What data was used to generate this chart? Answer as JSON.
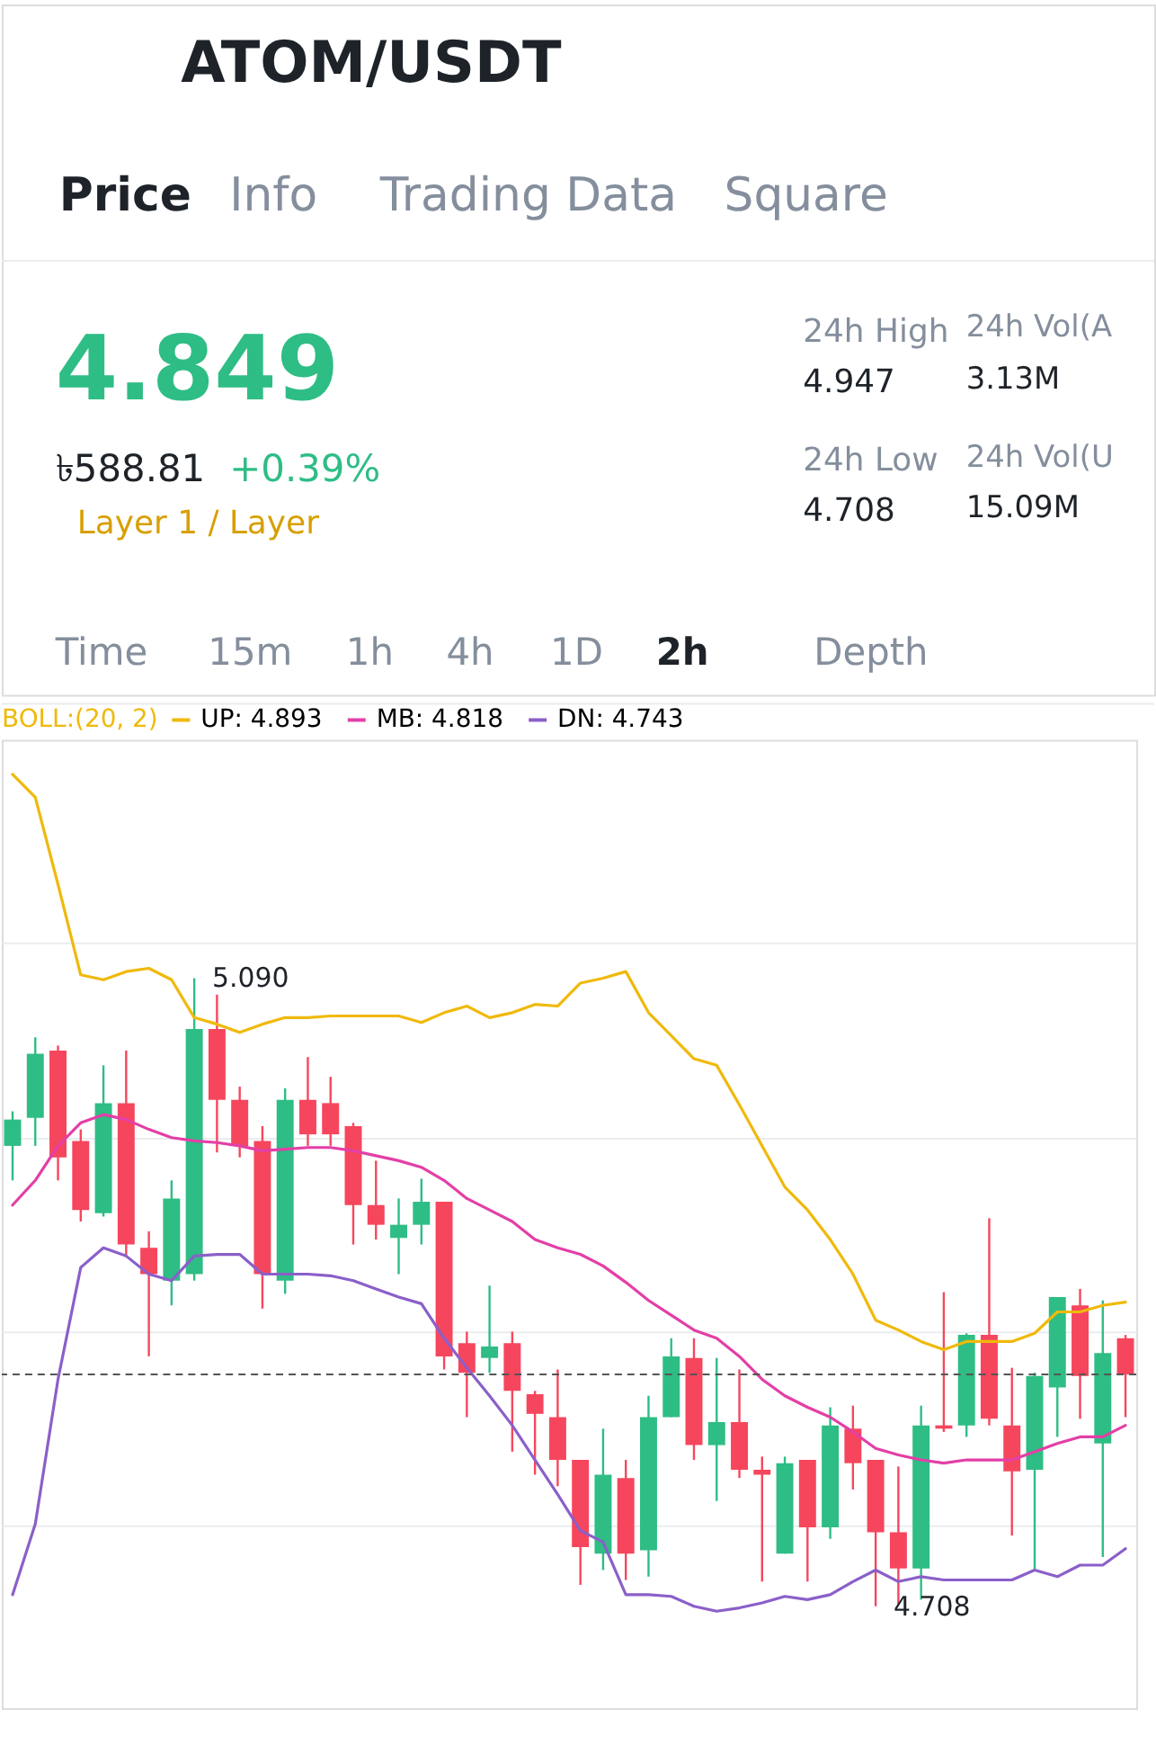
{
  "chart_data": [
    {
      "type": "other",
      "title": "ATOM/USDT",
      "annotations": [
        "Price",
        "Info",
        "Trading Data",
        "Square",
        "4.849",
        "৳588.81",
        "+0.39%",
        "Layer 1 / Layer",
        "24h High",
        "4.947",
        "24h Low",
        "4.708",
        "24h Vol(A",
        "3.13M",
        "24h Vol(U",
        "15.09M",
        "Time",
        "15m",
        "1h",
        "4h",
        "1D",
        "2h",
        "Depth"
      ]
    },
    {
      "type": "candlestick",
      "categories": [
        null,
        null,
        null,
        null,
        null,
        null,
        null,
        null,
        null,
        null,
        null,
        null,
        null,
        null,
        null,
        null,
        null,
        null,
        null,
        null,
        null,
        null,
        null,
        null,
        null,
        null,
        null,
        null,
        null,
        null,
        null,
        null,
        null,
        null,
        null,
        null,
        null,
        null,
        null,
        null,
        null,
        null,
        null,
        null,
        null,
        null,
        null,
        null,
        null,
        null
      ],
      "ohlc": [
        [
          4.988,
          5.009,
          4.967,
          5.004
        ],
        [
          5.005,
          5.054,
          4.988,
          5.044
        ],
        [
          5.046,
          5.049,
          4.967,
          4.981
        ],
        [
          4.991,
          4.998,
          4.942,
          4.949
        ],
        [
          4.947,
          5.037,
          4.945,
          5.014
        ],
        [
          5.014,
          5.046,
          4.921,
          4.928
        ],
        [
          4.926,
          4.936,
          4.86,
          4.91
        ],
        [
          4.906,
          4.967,
          4.891,
          4.956
        ],
        [
          4.91,
          5.09,
          4.906,
          5.059
        ],
        [
          5.059,
          5.08,
          4.984,
          5.016
        ],
        [
          5.016,
          5.024,
          4.981,
          4.988
        ],
        [
          4.991,
          5.0,
          4.889,
          4.91
        ],
        [
          4.906,
          5.023,
          4.898,
          5.016
        ],
        [
          5.016,
          5.042,
          4.988,
          4.995
        ],
        [
          5.014,
          5.03,
          4.988,
          4.995
        ],
        [
          5.0,
          5.002,
          4.928,
          4.952
        ],
        [
          4.952,
          4.979,
          4.931,
          4.94
        ],
        [
          4.932,
          4.956,
          4.91,
          4.94
        ],
        [
          4.94,
          4.968,
          4.928,
          4.954
        ],
        [
          4.954,
          4.954,
          4.852,
          4.86
        ],
        [
          4.868,
          4.875,
          4.823,
          4.85
        ],
        [
          4.859,
          4.903,
          4.85,
          4.866
        ],
        [
          4.868,
          4.875,
          4.802,
          4.839
        ],
        [
          4.837,
          4.839,
          4.788,
          4.825
        ],
        [
          4.823,
          4.852,
          4.781,
          4.797
        ],
        [
          4.797,
          4.797,
          4.721,
          4.744
        ],
        [
          4.74,
          4.816,
          4.73,
          4.788
        ],
        [
          4.786,
          4.797,
          4.724,
          4.74
        ],
        [
          4.742,
          4.836,
          4.726,
          4.823
        ],
        [
          4.823,
          4.871,
          4.823,
          4.86
        ],
        [
          4.859,
          4.871,
          4.797,
          4.806
        ],
        [
          4.806,
          4.859,
          4.772,
          4.82
        ],
        [
          4.82,
          4.852,
          4.786,
          4.791
        ],
        [
          4.791,
          4.799,
          4.723,
          4.788
        ],
        [
          4.74,
          4.799,
          4.74,
          4.795
        ],
        [
          4.797,
          4.797,
          4.723,
          4.756
        ],
        [
          4.756,
          4.829,
          4.749,
          4.818
        ],
        [
          4.816,
          4.83,
          4.779,
          4.795
        ],
        [
          4.797,
          4.797,
          4.708,
          4.753
        ],
        [
          4.753,
          4.793,
          4.709,
          4.731
        ],
        [
          4.731,
          4.83,
          4.712,
          4.818
        ],
        [
          4.818,
          4.899,
          4.814,
          4.816
        ],
        [
          4.818,
          4.874,
          4.811,
          4.873
        ],
        [
          4.873,
          4.944,
          4.818,
          4.822
        ],
        [
          4.818,
          4.853,
          4.751,
          4.79
        ],
        [
          4.791,
          4.85,
          4.73,
          4.848
        ],
        [
          4.841,
          4.896,
          4.811,
          4.896
        ],
        [
          4.891,
          4.901,
          4.822,
          4.848
        ],
        [
          4.807,
          4.894,
          4.738,
          4.862
        ],
        [
          4.871,
          4.873,
          4.823,
          4.849
        ]
      ],
      "series": [
        {
          "name": "UP: 4.893",
          "type": "line",
          "color": "#f0b90b",
          "values": [
            5.214,
            5.2,
            5.147,
            5.092,
            5.089,
            5.094,
            5.096,
            5.089,
            5.066,
            5.062,
            5.057,
            5.062,
            5.066,
            5.066,
            5.067,
            5.067,
            5.067,
            5.067,
            5.063,
            5.069,
            5.073,
            5.066,
            5.069,
            5.074,
            5.073,
            5.087,
            5.09,
            5.094,
            5.069,
            5.055,
            5.041,
            5.037,
            5.013,
            4.988,
            4.963,
            4.949,
            4.931,
            4.91,
            4.882,
            4.876,
            4.869,
            4.864,
            4.869,
            4.869,
            4.869,
            4.874,
            4.887,
            4.887,
            4.891,
            4.893
          ]
        },
        {
          "name": "MB: 4.818",
          "type": "line",
          "color": "#e33fa6",
          "values": [
            4.952,
            4.967,
            4.988,
            5.002,
            5.007,
            5.004,
            4.998,
            4.993,
            4.991,
            4.99,
            4.988,
            4.985,
            4.986,
            4.987,
            4.987,
            4.985,
            4.982,
            4.979,
            4.975,
            4.967,
            4.956,
            4.949,
            4.942,
            4.931,
            4.926,
            4.922,
            4.915,
            4.905,
            4.894,
            4.885,
            4.876,
            4.871,
            4.86,
            4.846,
            4.836,
            4.829,
            4.823,
            4.814,
            4.804,
            4.8,
            4.797,
            4.795,
            4.797,
            4.797,
            4.797,
            4.802,
            4.807,
            4.811,
            4.811,
            4.818
          ]
        },
        {
          "name": "DN: 4.743",
          "type": "line",
          "color": "#8b5fc9",
          "values": [
            4.715,
            4.758,
            4.846,
            4.914,
            4.926,
            4.921,
            4.91,
            4.906,
            4.921,
            4.922,
            4.922,
            4.91,
            4.91,
            4.91,
            4.909,
            4.906,
            4.901,
            4.896,
            4.892,
            4.871,
            4.853,
            4.836,
            4.818,
            4.797,
            4.776,
            4.754,
            4.747,
            4.715,
            4.715,
            4.714,
            4.708,
            4.705,
            4.707,
            4.71,
            4.714,
            4.712,
            4.715,
            4.723,
            4.73,
            4.723,
            4.726,
            4.724,
            4.724,
            4.724,
            4.724,
            4.73,
            4.726,
            4.733,
            4.733,
            4.743
          ]
        }
      ],
      "legend_title": "BOLL:(20, 2)",
      "legend": "top left",
      "ylim": [
        4.646,
        5.235
      ],
      "yticks": [
        {
          "value": 4.757,
          "label": null
        },
        {
          "value": 4.875,
          "label": null
        },
        {
          "value": 4.993,
          "label": null
        },
        {
          "value": 5.112,
          "label": null
        }
      ],
      "grid": "y",
      "tick_labels": false,
      "ref_lines": [
        {
          "axis": "y",
          "value": 4.849,
          "label": null,
          "color": "#555555",
          "line_style": "dashed"
        }
      ],
      "annotations": [
        "5.090",
        "4.708"
      ]
    }
  ]
}
